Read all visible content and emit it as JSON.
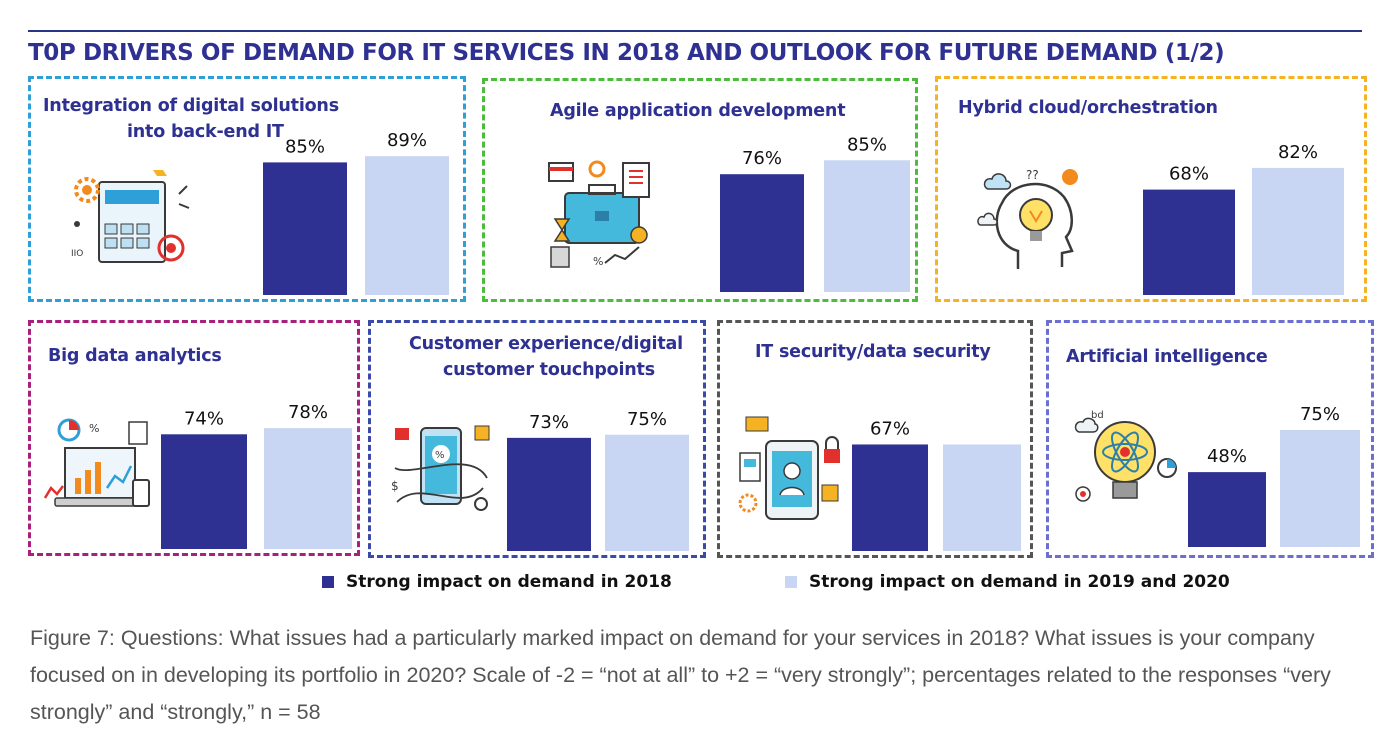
{
  "title": "T0P DRIVERS OF DEMAND FOR IT SERVICES IN 2018 AND OUTLOOK FOR FUTURE DEMAND (1/2)",
  "legend": [
    {
      "label": "Strong impact on demand in 2018",
      "color": "#2e3192"
    },
    {
      "label": "Strong impact on demand in 2019 and 2020",
      "color": "#c9d6f3"
    }
  ],
  "caption": "Figure 7: Questions: What issues had a particularly marked impact on demand for your services in 2018? What issues is your company focused on in developing its portfolio in 2020? Scale of -2 = “not at all” to +2 = “very strongly”; percentages related to the responses “very strongly” and “strongly,” n = 58",
  "colors": {
    "series_2018": "#2e3192",
    "series_2019_2020": "#c9d6f3",
    "title": "#2e3192"
  },
  "chart_data": [
    {
      "type": "bar",
      "title": "Integration of digital solutions into back-end IT",
      "title_lines": [
        "Integration of digital solutions",
        "into back-end IT"
      ],
      "border_color": "#2f9fd8",
      "icon": "digital-integration-icon",
      "categories": [
        "Strong impact on demand in 2018",
        "Strong impact on demand in 2019 and 2020"
      ],
      "values": [
        85,
        89
      ],
      "value_labels": [
        "85%",
        "89%"
      ],
      "ylim": [
        0,
        100
      ]
    },
    {
      "type": "bar",
      "title": "Agile application development",
      "title_lines": [
        "Agile application development"
      ],
      "border_color": "#4dbb3c",
      "icon": "briefcase-icon",
      "categories": [
        "Strong impact on demand in 2018",
        "Strong impact on demand in 2019 and 2020"
      ],
      "values": [
        76,
        85
      ],
      "value_labels": [
        "76%",
        "85%"
      ],
      "ylim": [
        0,
        100
      ]
    },
    {
      "type": "bar",
      "title": "Hybrid cloud/orchestration",
      "title_lines": [
        "Hybrid cloud/orchestration"
      ],
      "border_color": "#f5b323",
      "icon": "head-lightbulb-icon",
      "categories": [
        "Strong impact on demand in 2018",
        "Strong impact on demand in 2019 and 2020"
      ],
      "values": [
        68,
        82
      ],
      "value_labels": [
        "68%",
        "82%"
      ],
      "ylim": [
        0,
        100
      ]
    },
    {
      "type": "bar",
      "title": "Big data analytics",
      "title_lines": [
        "Big data analytics"
      ],
      "border_color": "#a8207e",
      "icon": "analytics-devices-icon",
      "categories": [
        "Strong impact on demand in 2018",
        "Strong impact on demand in 2019 and 2020"
      ],
      "values": [
        74,
        78
      ],
      "value_labels": [
        "74%",
        "78%"
      ],
      "ylim": [
        0,
        100
      ]
    },
    {
      "type": "bar",
      "title": "Customer experience/digital customer touchpoints",
      "title_lines": [
        "Customer experience/digital",
        "customer touchpoints"
      ],
      "border_color": "#3a4aa8",
      "icon": "smartphone-icon",
      "categories": [
        "Strong impact on demand in 2018",
        "Strong impact on demand in 2019 and 2020"
      ],
      "values": [
        73,
        75
      ],
      "value_labels": [
        "73%",
        "75%"
      ],
      "ylim": [
        0,
        100
      ]
    },
    {
      "type": "bar",
      "title": "IT security/data security",
      "title_lines": [
        "IT security/data security"
      ],
      "border_color": "#555555",
      "icon": "secure-phone-icon",
      "categories": [
        "Strong impact on demand in 2018",
        "Strong impact on demand in 2019 and 2020"
      ],
      "values": [
        67,
        null
      ],
      "value_labels": [
        "67%",
        ""
      ],
      "ylim": [
        0,
        100
      ]
    },
    {
      "type": "bar",
      "title": "Artificial intelligence",
      "title_lines": [
        "Artificial intelligence"
      ],
      "border_color": "#6a6fd0",
      "icon": "atom-bulb-icon",
      "categories": [
        "Strong impact on demand in 2018",
        "Strong impact on demand in 2019 and 2020"
      ],
      "values": [
        48,
        75
      ],
      "value_labels": [
        "48%",
        "75%"
      ],
      "ylim": [
        0,
        100
      ]
    }
  ]
}
